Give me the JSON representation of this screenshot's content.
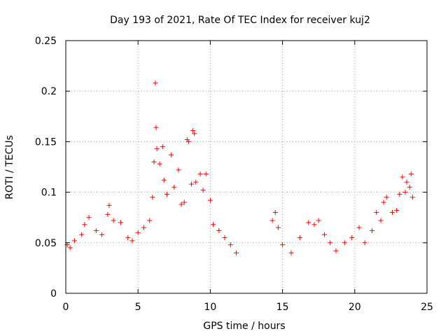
{
  "chart_data": {
    "type": "scatter",
    "title": "Day 193 of 2021, Rate Of TEC Index for receiver kuj2",
    "xlabel": "GPS time / hours",
    "ylabel": "ROTI / TECUs",
    "xlim": [
      0,
      25
    ],
    "ylim": [
      0,
      0.25
    ],
    "x_ticks": [
      0,
      5,
      10,
      15,
      20,
      25
    ],
    "x_tick_labels": [
      "0",
      "5",
      "10",
      "15",
      "20",
      "25"
    ],
    "y_ticks": [
      0,
      0.05,
      0.1,
      0.15,
      0.2,
      0.25
    ],
    "y_tick_labels": [
      "0",
      "0.05",
      "0.1",
      "0.15",
      "0.2",
      "0.25"
    ],
    "grid": true,
    "marker": "plus",
    "color": "#ff0000",
    "data_gap_hours": [
      12.1,
      14.0
    ],
    "series": [
      {
        "name": "ROTI",
        "points": [
          [
            0.1,
            0.048
          ],
          [
            0.3,
            0.045
          ],
          [
            0.6,
            0.052
          ],
          [
            1.1,
            0.058
          ],
          [
            1.3,
            0.068
          ],
          [
            1.6,
            0.075
          ],
          [
            2.1,
            0.062
          ],
          [
            2.5,
            0.058
          ],
          [
            2.9,
            0.078
          ],
          [
            3.0,
            0.087
          ],
          [
            3.3,
            0.072
          ],
          [
            3.8,
            0.07
          ],
          [
            4.3,
            0.055
          ],
          [
            4.6,
            0.052
          ],
          [
            5.0,
            0.06
          ],
          [
            5.4,
            0.065
          ],
          [
            5.8,
            0.072
          ],
          [
            6.0,
            0.095
          ],
          [
            6.1,
            0.13
          ],
          [
            6.2,
            0.208
          ],
          [
            6.25,
            0.164
          ],
          [
            6.3,
            0.143
          ],
          [
            6.5,
            0.128
          ],
          [
            6.7,
            0.145
          ],
          [
            6.8,
            0.112
          ],
          [
            7.0,
            0.098
          ],
          [
            7.3,
            0.137
          ],
          [
            7.5,
            0.105
          ],
          [
            7.8,
            0.122
          ],
          [
            8.0,
            0.088
          ],
          [
            8.2,
            0.09
          ],
          [
            8.4,
            0.152
          ],
          [
            8.5,
            0.15
          ],
          [
            8.7,
            0.108
          ],
          [
            8.8,
            0.161
          ],
          [
            8.9,
            0.158
          ],
          [
            9.0,
            0.11
          ],
          [
            9.3,
            0.118
          ],
          [
            9.5,
            0.102
          ],
          [
            9.7,
            0.118
          ],
          [
            10.0,
            0.092
          ],
          [
            10.2,
            0.068
          ],
          [
            10.6,
            0.062
          ],
          [
            11.0,
            0.055
          ],
          [
            11.4,
            0.048
          ],
          [
            11.8,
            0.04
          ],
          [
            14.3,
            0.072
          ],
          [
            14.5,
            0.08
          ],
          [
            14.7,
            0.065
          ],
          [
            15.0,
            0.048
          ],
          [
            15.6,
            0.04
          ],
          [
            16.2,
            0.055
          ],
          [
            16.8,
            0.07
          ],
          [
            17.2,
            0.068
          ],
          [
            17.5,
            0.072
          ],
          [
            17.9,
            0.058
          ],
          [
            18.3,
            0.05
          ],
          [
            18.7,
            0.042
          ],
          [
            19.3,
            0.05
          ],
          [
            19.8,
            0.055
          ],
          [
            20.3,
            0.065
          ],
          [
            20.7,
            0.05
          ],
          [
            21.2,
            0.062
          ],
          [
            21.5,
            0.08
          ],
          [
            21.8,
            0.072
          ],
          [
            22.0,
            0.09
          ],
          [
            22.2,
            0.095
          ],
          [
            22.6,
            0.08
          ],
          [
            22.9,
            0.082
          ],
          [
            23.1,
            0.098
          ],
          [
            23.3,
            0.115
          ],
          [
            23.5,
            0.1
          ],
          [
            23.6,
            0.11
          ],
          [
            23.8,
            0.105
          ],
          [
            23.9,
            0.118
          ],
          [
            24.0,
            0.095
          ]
        ]
      }
    ]
  }
}
